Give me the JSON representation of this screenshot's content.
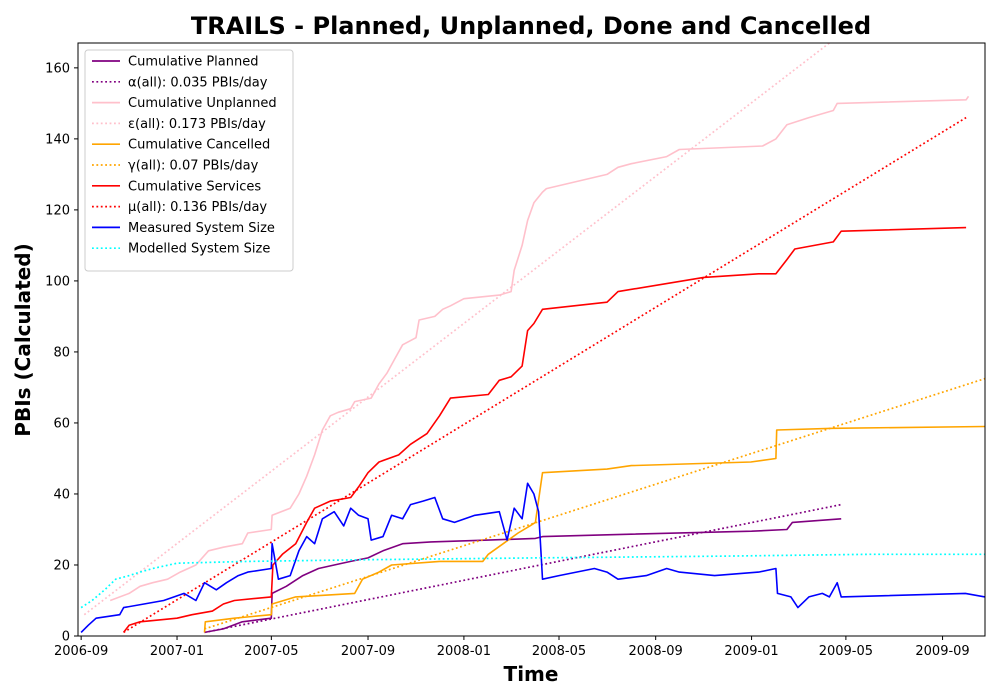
{
  "chart_data": {
    "type": "line",
    "title": "TRAILS - Planned, Unplanned, Done  and Cancelled",
    "xlabel": "Time",
    "ylabel": "PBIs (Calculated)",
    "xlim": [
      "2006-08-28",
      "2009-10-25"
    ],
    "ylim": [
      0,
      167
    ],
    "x_ticks": [
      "2006-09",
      "2007-01",
      "2007-05",
      "2007-09",
      "2008-01",
      "2008-05",
      "2008-09",
      "2009-01",
      "2009-05",
      "2009-09"
    ],
    "y_ticks": [
      0,
      20,
      40,
      60,
      80,
      100,
      120,
      140,
      160
    ],
    "grid": false,
    "legend_position": "upper-left",
    "series": [
      {
        "name": "Cumulative Planned",
        "color": "#800080",
        "style": "solid",
        "points": [
          [
            "2007-02-05",
            1
          ],
          [
            "2007-03-01",
            2
          ],
          [
            "2007-03-25",
            4
          ],
          [
            "2007-05-01",
            5
          ],
          [
            "2007-05-02",
            12
          ],
          [
            "2007-05-20",
            14
          ],
          [
            "2007-06-10",
            17
          ],
          [
            "2007-06-30",
            19
          ],
          [
            "2007-07-20",
            20
          ],
          [
            "2007-08-10",
            21
          ],
          [
            "2007-09-01",
            22
          ],
          [
            "2007-09-20",
            24
          ],
          [
            "2007-10-15",
            26
          ],
          [
            "2007-11-20",
            26.5
          ],
          [
            "2008-02-01",
            27
          ],
          [
            "2008-04-01",
            27.5
          ],
          [
            "2008-04-10",
            28
          ],
          [
            "2008-07-01",
            28.5
          ],
          [
            "2009-01-01",
            29.5
          ],
          [
            "2009-02-15",
            30
          ],
          [
            "2009-02-22",
            32
          ],
          [
            "2009-04-25",
            33
          ]
        ]
      },
      {
        "name": "α(all): 0.035 PBIs/day",
        "color": "#800080",
        "style": "dotted",
        "points": [
          [
            "2007-02-05",
            1
          ],
          [
            "2009-04-25",
            37
          ]
        ]
      },
      {
        "name": "Cumulative Unplanned",
        "color": "#ffc0cb",
        "style": "solid",
        "points": [
          [
            "2006-10-08",
            10
          ],
          [
            "2006-11-01",
            12
          ],
          [
            "2006-11-15",
            14
          ],
          [
            "2006-12-01",
            15
          ],
          [
            "2006-12-20",
            16
          ],
          [
            "2007-01-05",
            18
          ],
          [
            "2007-01-25",
            20
          ],
          [
            "2007-02-10",
            24
          ],
          [
            "2007-03-01",
            25
          ],
          [
            "2007-03-25",
            26
          ],
          [
            "2007-04-01",
            29
          ],
          [
            "2007-05-01",
            30
          ],
          [
            "2007-05-02",
            34
          ],
          [
            "2007-05-25",
            36
          ],
          [
            "2007-06-05",
            40
          ],
          [
            "2007-06-15",
            45
          ],
          [
            "2007-06-25",
            51
          ],
          [
            "2007-07-05",
            58
          ],
          [
            "2007-07-15",
            62
          ],
          [
            "2007-07-25",
            63
          ],
          [
            "2007-08-10",
            64
          ],
          [
            "2007-08-15",
            66
          ],
          [
            "2007-09-05",
            67
          ],
          [
            "2007-09-15",
            71
          ],
          [
            "2007-09-25",
            74
          ],
          [
            "2007-10-05",
            78
          ],
          [
            "2007-10-15",
            82
          ],
          [
            "2007-11-01",
            84
          ],
          [
            "2007-11-05",
            89
          ],
          [
            "2007-11-25",
            90
          ],
          [
            "2007-12-05",
            92
          ],
          [
            "2007-12-15",
            93
          ],
          [
            "2008-01-01",
            95
          ],
          [
            "2008-02-15",
            96
          ],
          [
            "2008-03-01",
            97
          ],
          [
            "2008-03-05",
            103
          ],
          [
            "2008-03-15",
            110
          ],
          [
            "2008-03-22",
            117
          ],
          [
            "2008-03-30",
            122
          ],
          [
            "2008-04-10",
            125
          ],
          [
            "2008-04-15",
            126
          ],
          [
            "2008-07-01",
            130
          ],
          [
            "2008-07-15",
            132
          ],
          [
            "2008-08-01",
            133
          ],
          [
            "2008-09-15",
            135
          ],
          [
            "2008-10-01",
            137
          ],
          [
            "2009-01-15",
            138
          ],
          [
            "2009-02-01",
            140
          ],
          [
            "2009-02-15",
            144
          ],
          [
            "2009-03-15",
            146
          ],
          [
            "2009-04-15",
            148
          ],
          [
            "2009-04-20",
            150
          ],
          [
            "2009-10-01",
            151
          ],
          [
            "2009-10-04",
            152
          ]
        ]
      },
      {
        "name": "ε(all): 0.173 PBIs/day",
        "color": "#ffc0cb",
        "style": "dotted",
        "points": [
          [
            "2006-09-05",
            6
          ],
          [
            "2009-04-10",
            167
          ]
        ]
      },
      {
        "name": "Cumulative Cancelled",
        "color": "#ffa500",
        "style": "solid",
        "points": [
          [
            "2007-02-05",
            1
          ],
          [
            "2007-02-06",
            4
          ],
          [
            "2007-03-15",
            5
          ],
          [
            "2007-05-01",
            6
          ],
          [
            "2007-05-02",
            9
          ],
          [
            "2007-06-01",
            11
          ],
          [
            "2007-08-15",
            12
          ],
          [
            "2007-08-25",
            16
          ],
          [
            "2007-09-15",
            18
          ],
          [
            "2007-10-01",
            20
          ],
          [
            "2007-12-01",
            21
          ],
          [
            "2008-01-25",
            21
          ],
          [
            "2008-02-01",
            23
          ],
          [
            "2008-02-20",
            26
          ],
          [
            "2008-03-10",
            29
          ],
          [
            "2008-03-25",
            31
          ],
          [
            "2008-04-01",
            32
          ],
          [
            "2008-04-10",
            46
          ],
          [
            "2008-07-01",
            47
          ],
          [
            "2008-08-01",
            48
          ],
          [
            "2008-12-31",
            49
          ],
          [
            "2009-02-01",
            50
          ],
          [
            "2009-02-02",
            58
          ],
          [
            "2009-04-15",
            58.5
          ],
          [
            "2009-10-25",
            59
          ]
        ]
      },
      {
        "name": "γ(all): 0.07 PBIs/day",
        "color": "#ffa500",
        "style": "dotted",
        "points": [
          [
            "2007-02-05",
            2
          ],
          [
            "2009-10-25",
            72.5
          ]
        ]
      },
      {
        "name": "Cumulative Services",
        "color": "#ff0000",
        "style": "solid",
        "points": [
          [
            "2006-10-25",
            1
          ],
          [
            "2006-11-01",
            3
          ],
          [
            "2006-11-15",
            4
          ],
          [
            "2007-01-01",
            5
          ],
          [
            "2007-01-20",
            6
          ],
          [
            "2007-02-15",
            7
          ],
          [
            "2007-03-01",
            9
          ],
          [
            "2007-03-15",
            10
          ],
          [
            "2007-05-01",
            11
          ],
          [
            "2007-05-03",
            20
          ],
          [
            "2007-05-15",
            23
          ],
          [
            "2007-06-01",
            26
          ],
          [
            "2007-06-15",
            32
          ],
          [
            "2007-06-25",
            36
          ],
          [
            "2007-07-15",
            38
          ],
          [
            "2007-08-10",
            39
          ],
          [
            "2007-08-20",
            42
          ],
          [
            "2007-09-01",
            46
          ],
          [
            "2007-09-15",
            49
          ],
          [
            "2007-10-10",
            51
          ],
          [
            "2007-10-25",
            54
          ],
          [
            "2007-11-15",
            57
          ],
          [
            "2007-12-01",
            62
          ],
          [
            "2007-12-15",
            67
          ],
          [
            "2008-02-01",
            68
          ],
          [
            "2008-02-15",
            72
          ],
          [
            "2008-03-01",
            73
          ],
          [
            "2008-03-15",
            76
          ],
          [
            "2008-03-22",
            86
          ],
          [
            "2008-03-30",
            88
          ],
          [
            "2008-04-10",
            92
          ],
          [
            "2008-07-01",
            94
          ],
          [
            "2008-07-15",
            97
          ],
          [
            "2008-11-01",
            101
          ],
          [
            "2009-01-10",
            102
          ],
          [
            "2009-02-01",
            102
          ],
          [
            "2009-02-15",
            106
          ],
          [
            "2009-02-25",
            109
          ],
          [
            "2009-04-15",
            111
          ],
          [
            "2009-04-25",
            114
          ],
          [
            "2009-10-01",
            115
          ]
        ]
      },
      {
        "name": "μ(all): 0.136 PBIs/day",
        "color": "#ff0000",
        "style": "dotted",
        "points": [
          [
            "2006-10-25",
            1
          ],
          [
            "2009-10-01",
            146
          ]
        ]
      },
      {
        "name": "Measured System Size",
        "color": "#0000ff",
        "style": "solid",
        "points": [
          [
            "2006-09-01",
            1
          ],
          [
            "2006-09-10",
            3
          ],
          [
            "2006-09-20",
            5
          ],
          [
            "2006-10-20",
            6
          ],
          [
            "2006-10-25",
            8
          ],
          [
            "2006-11-20",
            9
          ],
          [
            "2006-12-15",
            10
          ],
          [
            "2007-01-10",
            12
          ],
          [
            "2007-01-25",
            10
          ],
          [
            "2007-02-05",
            15
          ],
          [
            "2007-02-20",
            13
          ],
          [
            "2007-03-05",
            15
          ],
          [
            "2007-03-20",
            17
          ],
          [
            "2007-04-01",
            18
          ],
          [
            "2007-05-01",
            19
          ],
          [
            "2007-05-02",
            26
          ],
          [
            "2007-05-10",
            16
          ],
          [
            "2007-05-25",
            17
          ],
          [
            "2007-06-05",
            24
          ],
          [
            "2007-06-15",
            28
          ],
          [
            "2007-06-25",
            26
          ],
          [
            "2007-07-05",
            33
          ],
          [
            "2007-07-20",
            35
          ],
          [
            "2007-08-01",
            31
          ],
          [
            "2007-08-10",
            36
          ],
          [
            "2007-08-20",
            34
          ],
          [
            "2007-09-01",
            33
          ],
          [
            "2007-09-05",
            27
          ],
          [
            "2007-09-20",
            28
          ],
          [
            "2007-10-01",
            34
          ],
          [
            "2007-10-15",
            33
          ],
          [
            "2007-10-25",
            37
          ],
          [
            "2007-11-10",
            38
          ],
          [
            "2007-11-25",
            39
          ],
          [
            "2007-12-05",
            33
          ],
          [
            "2007-12-20",
            32
          ],
          [
            "2008-01-15",
            34
          ],
          [
            "2008-02-15",
            35
          ],
          [
            "2008-02-25",
            27
          ],
          [
            "2008-03-05",
            36
          ],
          [
            "2008-03-15",
            33
          ],
          [
            "2008-03-22",
            43
          ],
          [
            "2008-03-30",
            40
          ],
          [
            "2008-04-05",
            35
          ],
          [
            "2008-04-08",
            24
          ],
          [
            "2008-04-10",
            16
          ],
          [
            "2008-05-01",
            17
          ],
          [
            "2008-06-15",
            19
          ],
          [
            "2008-07-01",
            18
          ],
          [
            "2008-07-15",
            16
          ],
          [
            "2008-08-20",
            17
          ],
          [
            "2008-09-15",
            19
          ],
          [
            "2008-10-01",
            18
          ],
          [
            "2008-11-15",
            17
          ],
          [
            "2009-01-10",
            18
          ],
          [
            "2009-02-01",
            19
          ],
          [
            "2009-02-03",
            12
          ],
          [
            "2009-02-20",
            11
          ],
          [
            "2009-03-01",
            8
          ],
          [
            "2009-03-15",
            11
          ],
          [
            "2009-04-01",
            12
          ],
          [
            "2009-04-10",
            11
          ],
          [
            "2009-04-20",
            15
          ],
          [
            "2009-04-25",
            11
          ],
          [
            "2009-09-30",
            12
          ],
          [
            "2009-10-25",
            11
          ]
        ]
      },
      {
        "name": "Modelled System Size",
        "color": "#00ffff",
        "style": "dotted",
        "points": [
          [
            "2006-09-01",
            8
          ],
          [
            "2006-09-15",
            10
          ],
          [
            "2006-10-01",
            13
          ],
          [
            "2006-10-15",
            16
          ],
          [
            "2006-11-01",
            17
          ],
          [
            "2006-11-15",
            18
          ],
          [
            "2006-12-01",
            19
          ],
          [
            "2007-01-01",
            20.5
          ],
          [
            "2007-04-01",
            21
          ],
          [
            "2007-09-01",
            21.5
          ],
          [
            "2008-04-01",
            22
          ],
          [
            "2008-12-01",
            22.5
          ],
          [
            "2009-06-01",
            23
          ],
          [
            "2009-10-25",
            23
          ]
        ]
      }
    ]
  }
}
